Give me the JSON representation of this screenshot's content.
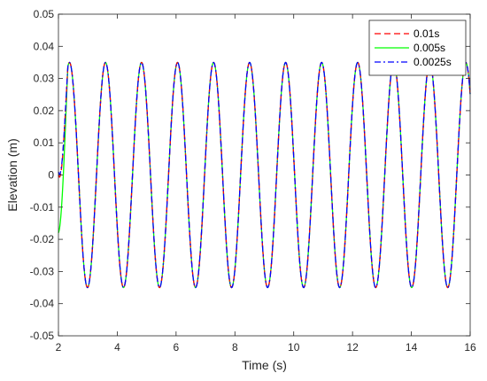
{
  "chart_data": {
    "type": "line",
    "title": "",
    "xlabel": "Time (s)",
    "ylabel": "Elevation (m)",
    "xlim": [
      2,
      16
    ],
    "ylim": [
      -0.05,
      0.05
    ],
    "xticks": [
      2,
      4,
      6,
      8,
      10,
      12,
      14,
      16
    ],
    "yticks": [
      -0.05,
      -0.04,
      -0.03,
      -0.02,
      -0.01,
      0,
      0.01,
      0.02,
      0.03,
      0.04,
      0.05
    ],
    "grid": false,
    "legend_position": "top-right",
    "wave": {
      "amplitude": 0.035,
      "period_s": 1.225,
      "first_crest_s": 2.375
    },
    "series": [
      {
        "name": "0.01s",
        "color": "#ff0000",
        "style": "dashed",
        "start_value": 0.0
      },
      {
        "name": "0.005s",
        "color": "#00ff00",
        "style": "solid",
        "start_value": -0.018
      },
      {
        "name": "0.0025s",
        "color": "#0000ff",
        "style": "dash-dot",
        "start_value": 0.001
      }
    ]
  }
}
